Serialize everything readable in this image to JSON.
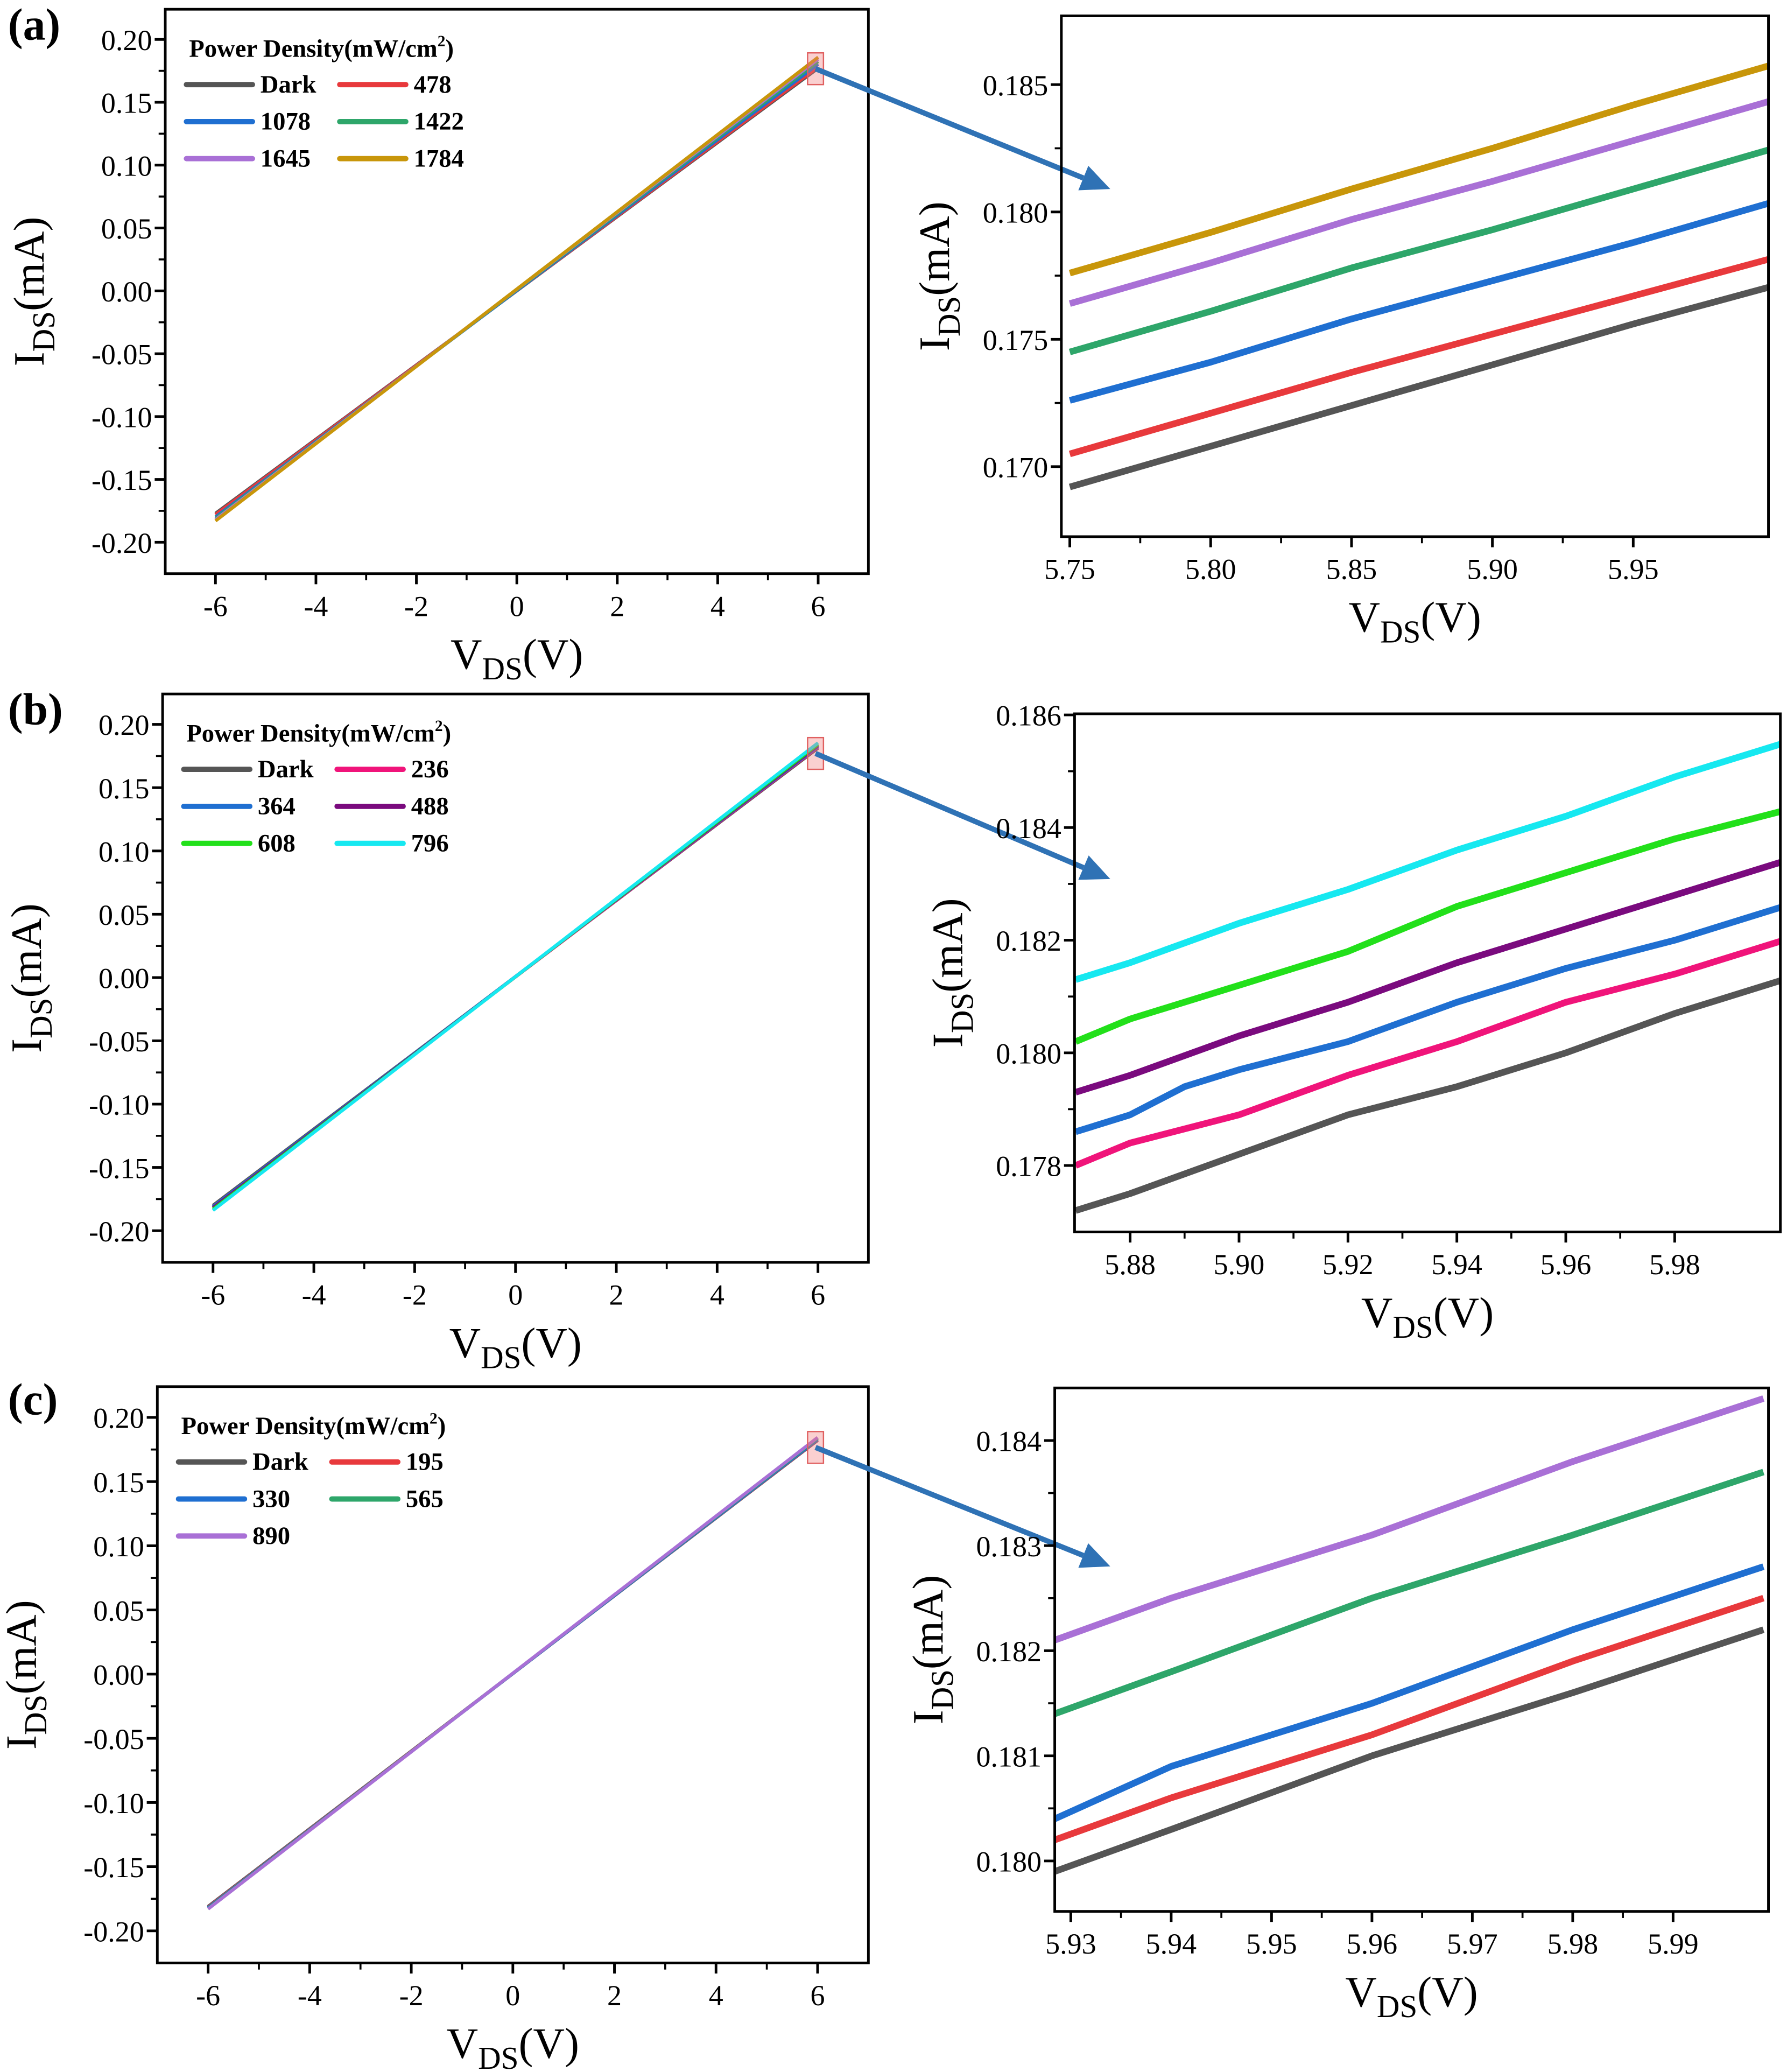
{
  "chart_data": [
    {
      "type": "line",
      "panel": "(a)",
      "xlabel": {
        "main": "V",
        "sub": "DS",
        "rest": "(V)"
      },
      "ylabel": {
        "main": "I",
        "sub": "DS",
        "rest": "(mA)"
      },
      "xlim": [
        -7,
        7
      ],
      "ylim": [
        -0.225,
        0.224
      ],
      "xticks": [
        -6,
        -4,
        -2,
        0,
        2,
        4,
        6
      ],
      "xtick_labels": [
        "-6",
        "-4",
        "-2",
        "0",
        "2",
        "4",
        "6"
      ],
      "yticks": [
        -0.2,
        -0.15,
        -0.1,
        -0.05,
        0,
        0.05,
        0.1,
        0.15,
        0.2
      ],
      "ytick_labels": [
        "-0.20",
        "-0.15",
        "-0.10",
        "-0.05",
        "0.00",
        "0.05",
        "0.10",
        "0.15",
        "0.20"
      ],
      "legend": {
        "title": "Power Density(mW/cm",
        "title_sup": "2",
        "title_end": ")",
        "placement": "top-left"
      },
      "series": [
        {
          "name": "Dark",
          "color": "#555555",
          "x": [
            -6,
            6
          ],
          "y": [
            -0.177,
            0.1771
          ]
        },
        {
          "name": "478",
          "color": "#e8393c",
          "x": [
            -6,
            6
          ],
          "y": [
            -0.178,
            0.1782
          ]
        },
        {
          "name": "1078",
          "color": "#1f6fd1",
          "x": [
            -6,
            6
          ],
          "y": [
            -0.18,
            0.1804
          ]
        },
        {
          "name": "1422",
          "color": "#2ea66a",
          "x": [
            -6,
            6
          ],
          "y": [
            -0.181,
            0.1825
          ]
        },
        {
          "name": "1645",
          "color": "#a970d6",
          "x": [
            -6,
            6
          ],
          "y": [
            -0.182,
            0.1844
          ]
        },
        {
          "name": "1784",
          "color": "#c8960a",
          "x": [
            -6,
            6
          ],
          "y": [
            -0.183,
            0.1858
          ]
        }
      ]
    },
    {
      "type": "line",
      "panel": "",
      "xlabel": {
        "main": "V",
        "sub": "DS",
        "rest": "(V)"
      },
      "ylabel": {
        "main": "I",
        "sub": "DS",
        "rest": "(mA)"
      },
      "xlim": [
        5.747,
        5.998
      ],
      "ylim": [
        0.16725,
        0.1877
      ],
      "xticks": [
        5.75,
        5.8,
        5.85,
        5.9,
        5.95
      ],
      "xtick_labels": [
        "5.75",
        "5.80",
        "5.85",
        "5.90",
        "5.95"
      ],
      "yticks": [
        0.17,
        0.175,
        0.18,
        0.185
      ],
      "ytick_labels": [
        "0.170",
        "0.175",
        "0.180",
        "0.185"
      ],
      "series": [
        {
          "name": "Dark",
          "color": "#555555",
          "x": [
            5.75,
            5.8,
            5.85,
            5.9,
            5.95,
            6.0
          ],
          "y": [
            0.1692,
            0.1708,
            0.1724,
            0.174,
            0.1756,
            0.1771
          ]
        },
        {
          "name": "478",
          "color": "#e8393c",
          "x": [
            5.75,
            5.8,
            5.85,
            5.9,
            5.95,
            6.0
          ],
          "y": [
            0.1705,
            0.1721,
            0.1737,
            0.1752,
            0.1767,
            0.1782
          ]
        },
        {
          "name": "1078",
          "color": "#1f6fd1",
          "x": [
            5.75,
            5.8,
            5.85,
            5.9,
            5.95,
            6.0
          ],
          "y": [
            0.1726,
            0.1741,
            0.1758,
            0.1773,
            0.1788,
            0.1804
          ]
        },
        {
          "name": "1422",
          "color": "#2ea66a",
          "x": [
            5.75,
            5.8,
            5.85,
            5.9,
            5.95,
            6.0
          ],
          "y": [
            0.1745,
            0.1761,
            0.1778,
            0.1793,
            0.1809,
            0.1825
          ]
        },
        {
          "name": "1645",
          "color": "#a970d6",
          "x": [
            5.75,
            5.8,
            5.85,
            5.9,
            5.95,
            6.0
          ],
          "y": [
            0.1764,
            0.178,
            0.1797,
            0.1812,
            0.1828,
            0.1844
          ]
        },
        {
          "name": "1784",
          "color": "#c8960a",
          "x": [
            5.75,
            5.8,
            5.85,
            5.9,
            5.95,
            6.0
          ],
          "y": [
            0.1776,
            0.1792,
            0.1809,
            0.1825,
            0.1842,
            0.1858
          ]
        }
      ]
    },
    {
      "type": "line",
      "panel": "(b)",
      "xlabel": {
        "main": "V",
        "sub": "DS",
        "rest": "(V)"
      },
      "ylabel": {
        "main": "I",
        "sub": "DS",
        "rest": "(mA)"
      },
      "xlim": [
        -7,
        7
      ],
      "ylim": [
        -0.225,
        0.224
      ],
      "xticks": [
        -6,
        -4,
        -2,
        0,
        2,
        4,
        6
      ],
      "xtick_labels": [
        "-6",
        "-4",
        "-2",
        "0",
        "2",
        "4",
        "6"
      ],
      "yticks": [
        -0.2,
        -0.15,
        -0.1,
        -0.05,
        0,
        0.05,
        0.1,
        0.15,
        0.2
      ],
      "ytick_labels": [
        "-0.20",
        "-0.15",
        "-0.10",
        "-0.05",
        "0.00",
        "0.05",
        "0.10",
        "0.15",
        "0.20"
      ],
      "legend": {
        "title": "Power Density(mW/cm",
        "title_sup": "2",
        "title_end": ")",
        "placement": "top-left"
      },
      "series": [
        {
          "name": "Dark",
          "color": "#555555",
          "x": [
            -6,
            6
          ],
          "y": [
            -0.18,
            0.1813
          ]
        },
        {
          "name": "236",
          "color": "#f0147a",
          "x": [
            -6,
            6
          ],
          "y": [
            -0.181,
            0.182
          ]
        },
        {
          "name": "364",
          "color": "#1f6fd1",
          "x": [
            -6,
            6
          ],
          "y": [
            -0.181,
            0.1826
          ]
        },
        {
          "name": "488",
          "color": "#7a0a7e",
          "x": [
            -6,
            6
          ],
          "y": [
            -0.182,
            0.1834
          ]
        },
        {
          "name": "608",
          "color": "#22e01a",
          "x": [
            -6,
            6
          ],
          "y": [
            -0.183,
            0.1842
          ]
        },
        {
          "name": "796",
          "color": "#16e8f0",
          "x": [
            -6,
            6
          ],
          "y": [
            -0.184,
            0.1854
          ]
        }
      ]
    },
    {
      "type": "line",
      "panel": "",
      "xlabel": {
        "main": "V",
        "sub": "DS",
        "rest": "(V)"
      },
      "ylabel": {
        "main": "I",
        "sub": "DS",
        "rest": "(mA)"
      },
      "xlim": [
        5.8698,
        5.9994
      ],
      "ylim": [
        0.17682,
        0.18602
      ],
      "xticks": [
        5.88,
        5.9,
        5.92,
        5.94,
        5.96,
        5.98
      ],
      "xtick_labels": [
        "5.88",
        "5.90",
        "5.92",
        "5.94",
        "5.96",
        "5.98"
      ],
      "yticks": [
        0.178,
        0.18,
        0.182,
        0.184,
        0.186
      ],
      "ytick_labels": [
        "0.178",
        "0.180",
        "0.182",
        "0.184",
        "0.186"
      ],
      "series": [
        {
          "name": "Dark",
          "color": "#555555",
          "x": [
            5.87,
            5.88,
            5.9,
            5.92,
            5.94,
            5.96,
            5.98,
            6.0
          ],
          "y": [
            0.1772,
            0.1775,
            0.1782,
            0.1789,
            0.1794,
            0.18,
            0.1807,
            0.1813
          ]
        },
        {
          "name": "236",
          "color": "#f0147a",
          "x": [
            5.87,
            5.88,
            5.9,
            5.92,
            5.94,
            5.96,
            5.98,
            6.0
          ],
          "y": [
            0.178,
            0.1784,
            0.1789,
            0.1796,
            0.1802,
            0.1809,
            0.1814,
            0.182
          ]
        },
        {
          "name": "364",
          "color": "#1f6fd1",
          "x": [
            5.87,
            5.88,
            5.89,
            5.9,
            5.92,
            5.94,
            5.96,
            5.98,
            6.0
          ],
          "y": [
            0.1786,
            0.1789,
            0.1794,
            0.1797,
            0.1802,
            0.1809,
            0.1815,
            0.182,
            0.1826
          ]
        },
        {
          "name": "488",
          "color": "#7a0a7e",
          "x": [
            5.87,
            5.88,
            5.9,
            5.92,
            5.94,
            5.96,
            5.98,
            6.0
          ],
          "y": [
            0.1793,
            0.1796,
            0.1803,
            0.1809,
            0.1816,
            0.1822,
            0.1828,
            0.1834
          ]
        },
        {
          "name": "608",
          "color": "#22e01a",
          "x": [
            5.87,
            5.88,
            5.9,
            5.92,
            5.94,
            5.96,
            5.98,
            6.0
          ],
          "y": [
            0.1802,
            0.1806,
            0.1812,
            0.1818,
            0.1826,
            0.1832,
            0.1838,
            0.1843
          ]
        },
        {
          "name": "796",
          "color": "#16e8f0",
          "x": [
            5.87,
            5.88,
            5.9,
            5.92,
            5.94,
            5.96,
            5.98,
            6.0
          ],
          "y": [
            0.1813,
            0.1816,
            0.1823,
            0.1829,
            0.1836,
            0.1842,
            0.1849,
            0.1855
          ]
        }
      ]
    },
    {
      "type": "line",
      "panel": "(c)",
      "xlabel": {
        "main": "V",
        "sub": "DS",
        "rest": "(V)"
      },
      "ylabel": {
        "main": "I",
        "sub": "DS",
        "rest": "(mA)"
      },
      "xlim": [
        -7,
        7
      ],
      "ylim": [
        -0.225,
        0.224
      ],
      "xticks": [
        -6,
        -4,
        -2,
        0,
        2,
        4,
        6
      ],
      "xtick_labels": [
        "-6",
        "-4",
        "-2",
        "0",
        "2",
        "4",
        "6"
      ],
      "yticks": [
        -0.2,
        -0.15,
        -0.1,
        -0.05,
        0,
        0.05,
        0.1,
        0.15,
        0.2
      ],
      "ytick_labels": [
        "-0.20",
        "-0.15",
        "-0.10",
        "-0.05",
        "0.00",
        "0.05",
        "0.10",
        "0.15",
        "0.20"
      ],
      "legend": {
        "title": "Power Density(mW/cm",
        "title_sup": "2",
        "title_end": ")",
        "placement": "top-left"
      },
      "series": [
        {
          "name": "Dark",
          "color": "#555555",
          "x": [
            -6,
            6
          ],
          "y": [
            -0.181,
            0.1822
          ]
        },
        {
          "name": "195",
          "color": "#e8393c",
          "x": [
            -6,
            6
          ],
          "y": [
            -0.1815,
            0.1825
          ]
        },
        {
          "name": "330",
          "color": "#1f6fd1",
          "x": [
            -6,
            6
          ],
          "y": [
            -0.182,
            0.1828
          ]
        },
        {
          "name": "565",
          "color": "#2ea66a",
          "x": [
            -6,
            6
          ],
          "y": [
            -0.1825,
            0.1837
          ]
        },
        {
          "name": "890",
          "color": "#a970d6",
          "x": [
            -6,
            6
          ],
          "y": [
            -0.183,
            0.1844
          ]
        }
      ]
    },
    {
      "type": "line",
      "panel": "",
      "xlabel": {
        "main": "V",
        "sub": "DS",
        "rest": "(V)"
      },
      "ylabel": {
        "main": "I",
        "sub": "DS",
        "rest": "(mA)"
      },
      "xlim": [
        5.9284,
        5.9995
      ],
      "ylim": [
        0.17952,
        0.1845
      ],
      "xticks": [
        5.93,
        5.94,
        5.95,
        5.96,
        5.97,
        5.98,
        5.99
      ],
      "xtick_labels": [
        "5.93",
        "5.94",
        "5.95",
        "5.96",
        "5.97",
        "5.98",
        "5.99"
      ],
      "yticks": [
        0.18,
        0.181,
        0.182,
        0.183,
        0.184
      ],
      "ytick_labels": [
        "0.180",
        "0.181",
        "0.182",
        "0.183",
        "0.184"
      ],
      "series": [
        {
          "name": "Dark",
          "color": "#555555",
          "x": [
            5.9284,
            5.94,
            5.96,
            5.98,
            5.999
          ],
          "y": [
            0.1799,
            0.1803,
            0.181,
            0.1816,
            0.1822
          ]
        },
        {
          "name": "195",
          "color": "#e8393c",
          "x": [
            5.9284,
            5.94,
            5.96,
            5.98,
            5.999
          ],
          "y": [
            0.1802,
            0.1806,
            0.1812,
            0.1819,
            0.1825
          ]
        },
        {
          "name": "330",
          "color": "#1f6fd1",
          "x": [
            5.9284,
            5.94,
            5.96,
            5.98,
            5.999
          ],
          "y": [
            0.1804,
            0.1809,
            0.1815,
            0.1822,
            0.1828
          ]
        },
        {
          "name": "565",
          "color": "#2ea66a",
          "x": [
            5.9284,
            5.94,
            5.96,
            5.98,
            5.999
          ],
          "y": [
            0.1814,
            0.1818,
            0.1825,
            0.1831,
            0.1837
          ]
        },
        {
          "name": "890",
          "color": "#a970d6",
          "x": [
            5.9284,
            5.94,
            5.96,
            5.98,
            5.999
          ],
          "y": [
            0.1821,
            0.1825,
            0.1831,
            0.1838,
            0.1844
          ]
        }
      ]
    }
  ]
}
